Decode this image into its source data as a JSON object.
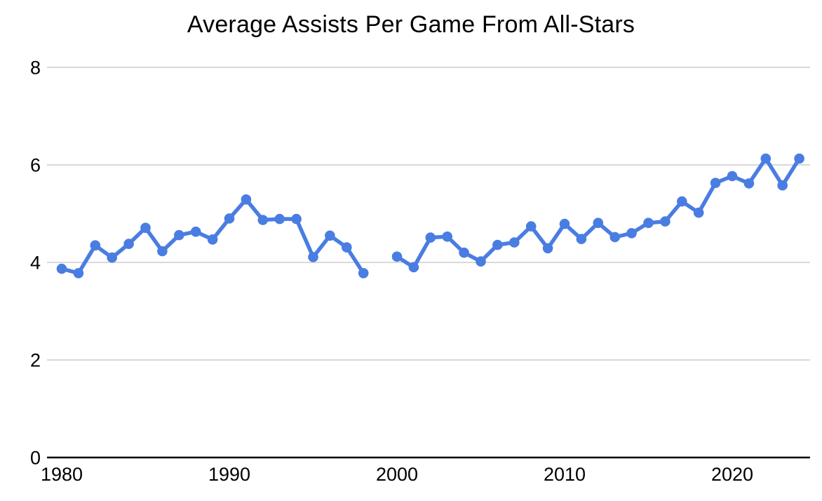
{
  "chart_data": {
    "type": "line",
    "title": "Average Assists Per Game From All-Stars",
    "series": [
      {
        "name": "Average assists per game from All-Stars",
        "x": [
          1980,
          1981,
          1982,
          1983,
          1984,
          1985,
          1986,
          1987,
          1988,
          1989,
          1990,
          1991,
          1992,
          1993,
          1994,
          1995,
          1996,
          1997,
          1998,
          1999,
          2000,
          2001,
          2002,
          2003,
          2004,
          2005,
          2006,
          2007,
          2008,
          2009,
          2010,
          2011,
          2012,
          2013,
          2014,
          2015,
          2016,
          2017,
          2018,
          2019,
          2020,
          2021,
          2022,
          2023,
          2024
        ],
        "values": [
          3.87,
          3.78,
          4.35,
          4.1,
          4.38,
          4.71,
          4.23,
          4.56,
          4.63,
          4.47,
          4.9,
          5.29,
          4.87,
          4.89,
          4.89,
          4.11,
          4.55,
          4.31,
          3.78,
          null,
          4.12,
          3.9,
          4.51,
          4.53,
          4.2,
          4.02,
          4.36,
          4.41,
          4.74,
          4.29,
          4.79,
          4.48,
          4.81,
          4.52,
          4.6,
          4.81,
          4.84,
          5.25,
          5.02,
          5.63,
          5.77,
          5.62,
          6.13,
          5.58,
          6.13
        ]
      }
    ],
    "gap_years": [
      1999
    ],
    "xlabel": "",
    "ylabel": "",
    "x_ticks": [
      "1980",
      "1990",
      "2000",
      "2010",
      "2020"
    ],
    "y_ticks": [
      "0",
      "2",
      "4",
      "6",
      "8"
    ],
    "xlim": [
      1980,
      2024
    ],
    "ylim": [
      0,
      8
    ],
    "grid": "horizontal-only",
    "legend": "none",
    "colors": {
      "line": "#4a7de2",
      "point": "#4a7de2",
      "gridline": "#d9d9d9",
      "axis_line": "#000000",
      "text": "#000000",
      "background": "#ffffff"
    }
  }
}
